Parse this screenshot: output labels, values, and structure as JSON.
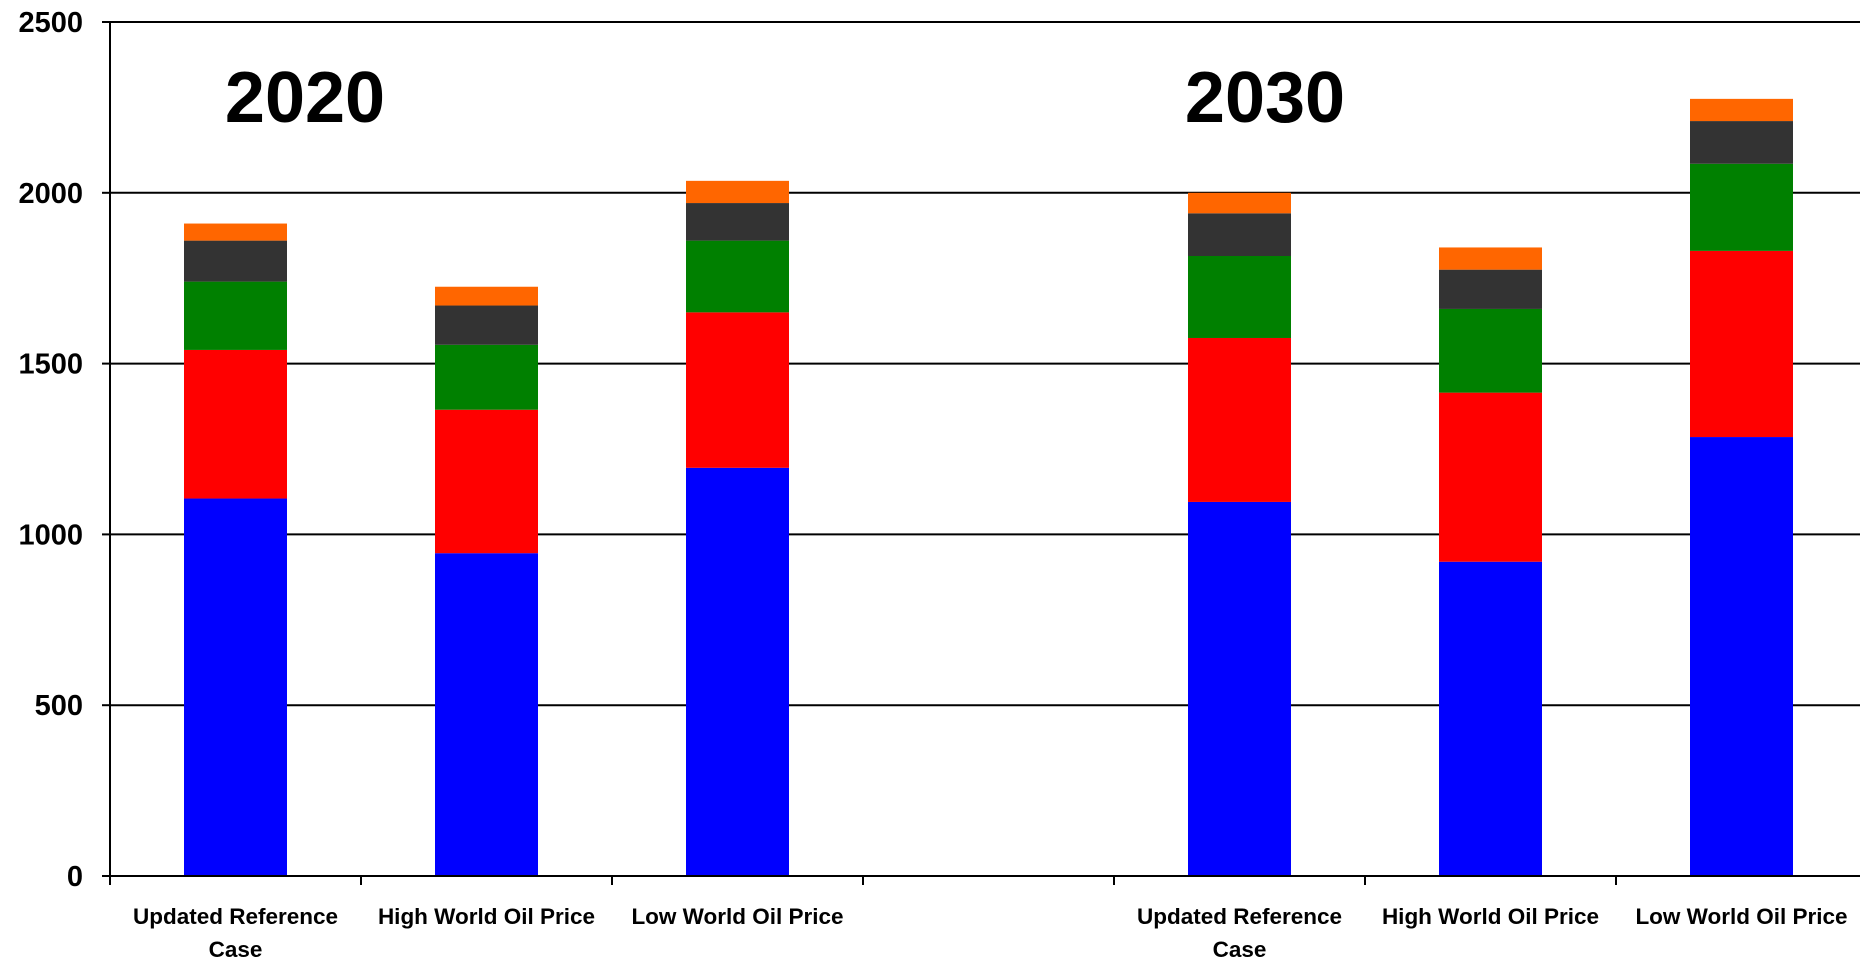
{
  "chart_data": {
    "type": "bar",
    "stacked": true,
    "title": "",
    "xlabel": "",
    "ylabel": "",
    "ylim": [
      0,
      2500
    ],
    "y_ticks": [
      0,
      500,
      1000,
      1500,
      2000,
      2500
    ],
    "grid": true,
    "legend": "none",
    "groups": [
      {
        "label": "2020",
        "categories": [
          "Updated Reference Case",
          "High World Oil Price",
          "Low World Oil Price"
        ]
      },
      {
        "label": "2030",
        "categories": [
          "Updated Reference Case",
          "High World Oil Price",
          "Low World Oil Price"
        ]
      }
    ],
    "categories": [
      "Updated Reference Case",
      "High World Oil Price",
      "Low World Oil Price",
      "Updated Reference Case",
      "High World Oil Price",
      "Low World Oil Price"
    ],
    "series": [
      {
        "color": "#0000ff",
        "values": [
          1105,
          945,
          1195,
          1095,
          920,
          1285
        ]
      },
      {
        "color": "#ff0000",
        "values": [
          435,
          420,
          455,
          480,
          495,
          545
        ]
      },
      {
        "color": "#008000",
        "values": [
          200,
          190,
          210,
          240,
          245,
          255
        ]
      },
      {
        "color": "#333333",
        "values": [
          120,
          115,
          110,
          125,
          115,
          125
        ]
      },
      {
        "color": "#ff6600",
        "values": [
          50,
          55,
          65,
          60,
          65,
          65
        ]
      }
    ]
  }
}
